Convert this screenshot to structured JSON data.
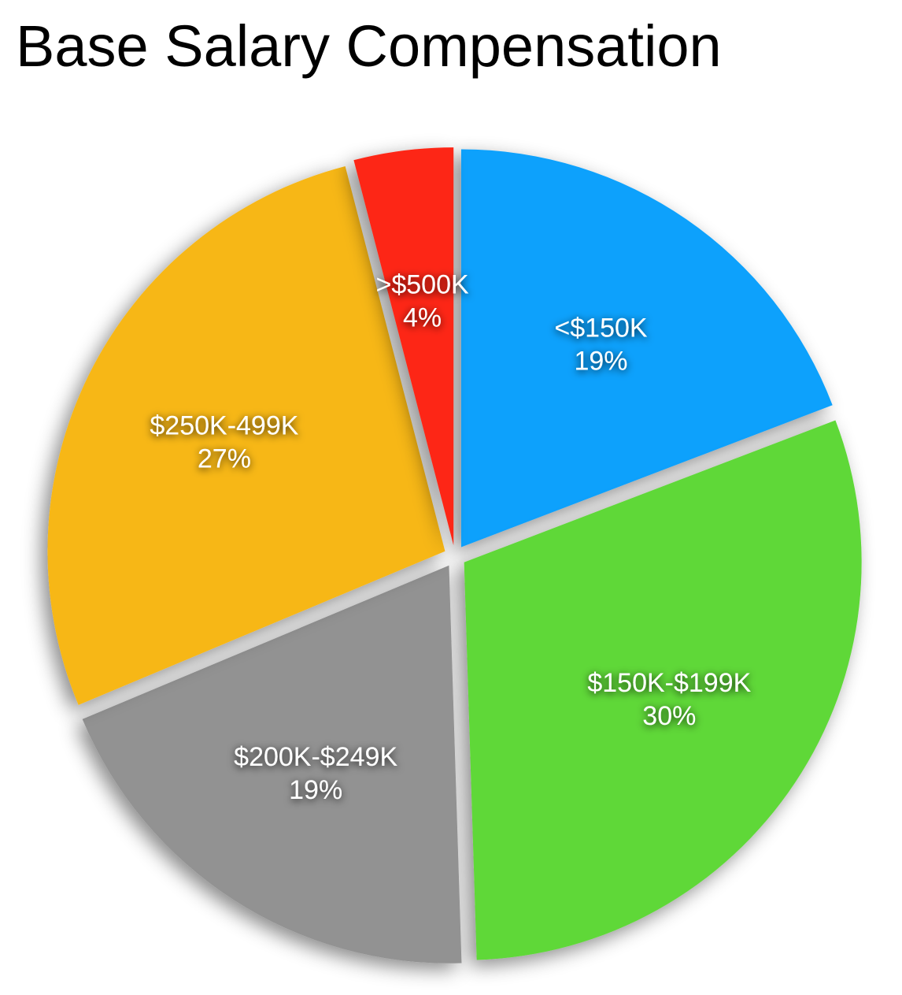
{
  "chart_data": {
    "type": "pie",
    "title": "Base Salary Compensation",
    "slices": [
      {
        "label": "<$150K",
        "percent_label": "19%",
        "value": 19,
        "color": "#0da1fc"
      },
      {
        "label": "$150K-$199K",
        "percent_label": "30%",
        "value": 30,
        "color": "#5fd838"
      },
      {
        "label": "$200K-$249K",
        "percent_label": "19%",
        "value": 19,
        "color": "#929292"
      },
      {
        "label": "$250K-499K",
        "percent_label": "27%",
        "value": 27,
        "color": "#f7b718"
      },
      {
        "label": ">$500K",
        "percent_label": "4%",
        "value": 4,
        "color": "#fd2612"
      }
    ],
    "start": "12 o'clock",
    "direction": "clockwise",
    "exploded": true,
    "legend": "none"
  }
}
